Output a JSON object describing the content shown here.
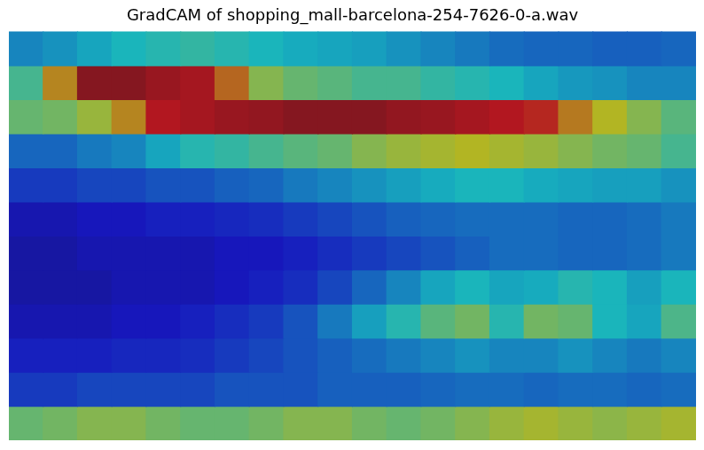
{
  "chart_data": {
    "type": "heatmap",
    "title": "GradCAM of shopping_mall-barcelona-254-7626-0-a.wav",
    "tick_labels": false,
    "cells": [
      [
        0.3,
        0.32,
        0.35,
        0.38,
        0.4,
        0.42,
        0.4,
        0.38,
        0.36,
        0.35,
        0.34,
        0.32,
        0.3,
        0.28,
        0.26,
        0.25,
        0.25,
        0.24,
        0.24,
        0.25
      ],
      [
        0.45,
        0.7,
        0.95,
        0.95,
        0.92,
        0.9,
        0.75,
        0.55,
        0.5,
        0.48,
        0.45,
        0.45,
        0.42,
        0.4,
        0.38,
        0.35,
        0.33,
        0.32,
        0.3,
        0.3
      ],
      [
        0.5,
        0.52,
        0.58,
        0.7,
        0.88,
        0.9,
        0.92,
        0.93,
        0.95,
        0.95,
        0.95,
        0.93,
        0.92,
        0.9,
        0.88,
        0.85,
        0.72,
        0.62,
        0.55,
        0.48
      ],
      [
        0.25,
        0.25,
        0.28,
        0.3,
        0.35,
        0.4,
        0.42,
        0.45,
        0.48,
        0.5,
        0.55,
        0.58,
        0.6,
        0.62,
        0.6,
        0.58,
        0.55,
        0.52,
        0.5,
        0.45
      ],
      [
        0.18,
        0.18,
        0.2,
        0.2,
        0.22,
        0.22,
        0.24,
        0.25,
        0.28,
        0.3,
        0.32,
        0.34,
        0.36,
        0.38,
        0.38,
        0.36,
        0.35,
        0.34,
        0.34,
        0.32
      ],
      [
        0.1,
        0.1,
        0.12,
        0.12,
        0.14,
        0.14,
        0.15,
        0.16,
        0.18,
        0.2,
        0.22,
        0.24,
        0.25,
        0.26,
        0.26,
        0.26,
        0.25,
        0.25,
        0.26,
        0.28
      ],
      [
        0.08,
        0.08,
        0.1,
        0.1,
        0.1,
        0.1,
        0.12,
        0.12,
        0.14,
        0.16,
        0.18,
        0.2,
        0.22,
        0.24,
        0.26,
        0.26,
        0.25,
        0.25,
        0.26,
        0.28
      ],
      [
        0.08,
        0.08,
        0.08,
        0.1,
        0.1,
        0.1,
        0.12,
        0.14,
        0.16,
        0.2,
        0.25,
        0.3,
        0.35,
        0.38,
        0.35,
        0.36,
        0.4,
        0.38,
        0.34,
        0.38
      ],
      [
        0.1,
        0.1,
        0.1,
        0.12,
        0.12,
        0.14,
        0.16,
        0.18,
        0.22,
        0.28,
        0.34,
        0.4,
        0.48,
        0.52,
        0.4,
        0.52,
        0.5,
        0.38,
        0.35,
        0.46
      ],
      [
        0.14,
        0.14,
        0.14,
        0.15,
        0.15,
        0.16,
        0.18,
        0.2,
        0.22,
        0.24,
        0.26,
        0.28,
        0.3,
        0.32,
        0.3,
        0.3,
        0.32,
        0.3,
        0.28,
        0.3
      ],
      [
        0.18,
        0.18,
        0.2,
        0.2,
        0.2,
        0.2,
        0.22,
        0.22,
        0.22,
        0.24,
        0.24,
        0.24,
        0.25,
        0.26,
        0.26,
        0.25,
        0.26,
        0.26,
        0.25,
        0.26
      ],
      [
        0.5,
        0.52,
        0.55,
        0.55,
        0.52,
        0.5,
        0.5,
        0.52,
        0.55,
        0.55,
        0.52,
        0.5,
        0.52,
        0.55,
        0.58,
        0.6,
        0.58,
        0.56,
        0.58,
        0.6
      ]
    ]
  }
}
